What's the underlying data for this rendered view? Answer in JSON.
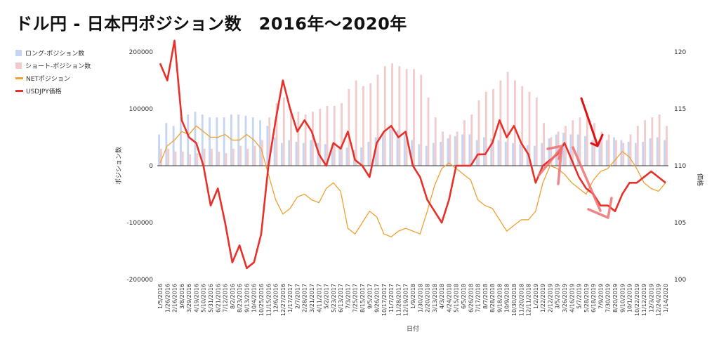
{
  "title": "ドル円 - 日本円ポジション数　2016年～2020年",
  "colors": {
    "long": "#c6d6f2",
    "short": "#f2cccc",
    "net": "#f0a030",
    "usdjpy": "#e8302a",
    "annotation_dark": "#e01010",
    "annotation_light": "#f07070",
    "zero_line": "#333333"
  },
  "chart_data": {
    "type": "combo",
    "title": "ドル円 - 日本円ポジション数　2016年～2020年",
    "xlabel": "日付",
    "ylabel": "ポジション数",
    "y2label": "価格",
    "ylim": [
      -200000,
      200000
    ],
    "y2lim": [
      100,
      120
    ],
    "yticks": [
      "200000",
      "100000",
      "0",
      "-100000",
      "-200000"
    ],
    "y2ticks": [
      "120",
      "115",
      "110",
      "105",
      "100"
    ],
    "legend": [
      {
        "name": "ロング-ポジション数",
        "kind": "bar"
      },
      {
        "name": "ショート-ポジション数",
        "kind": "bar"
      },
      {
        "name": "NETポジション",
        "kind": "line"
      },
      {
        "name": "USDJPY価格",
        "kind": "line"
      }
    ],
    "xticks": [
      "1/5/2016",
      "1/26/2016",
      "2/16/2016",
      "3/8/2016",
      "3/29/2016",
      "4/19/2016",
      "5/10/2016",
      "5/31/2016",
      "6/21/2016",
      "7/12/2016",
      "8/2/2016",
      "8/23/2016",
      "9/13/2016",
      "10/4/2016",
      "10/25/2016",
      "11/15/2016",
      "12/6/2016",
      "12/27/2016",
      "1/17/2017",
      "2/7/2017",
      "2/28/2017",
      "3/21/2017",
      "4/11/2017",
      "5/2/2017",
      "5/23/2017",
      "6/13/2017",
      "7/3/2017",
      "7/25/2017",
      "8/15/2017",
      "9/5/2017",
      "9/26/2017",
      "10/17/2017",
      "11/7/2017",
      "11/28/2017",
      "12/19/2017",
      "1/9/2018",
      "1/30/2018",
      "2/20/2018",
      "3/13/2018",
      "4/3/2018",
      "4/24/2018",
      "5/15/2018",
      "6/5/2018",
      "6/26/2018",
      "7/17/2018",
      "8/7/2018",
      "8/28/2018",
      "9/18/2018",
      "10/9/2018",
      "10/30/2018",
      "11/20/2018",
      "12/11/2018",
      "1/2/2019",
      "1/22/2019",
      "2/12/2019",
      "3/5/2019",
      "3/26/2019",
      "4/16/2019",
      "5/7/2019",
      "5/28/2019",
      "6/18/2019",
      "7/9/2019",
      "7/30/2019",
      "8/20/2019",
      "9/10/2019",
      "10/1/2019",
      "10/22/2019",
      "11/12/2019",
      "12/3/2019",
      "12/24/2019",
      "1/14/2020"
    ],
    "series": [
      {
        "name": "ロング-ポジション数",
        "values": [
          55000,
          75000,
          70000,
          85000,
          90000,
          95000,
          90000,
          85000,
          85000,
          85000,
          90000,
          90000,
          88000,
          85000,
          80000,
          70000,
          50000,
          40000,
          45000,
          42000,
          40000,
          45000,
          40000,
          38000,
          38000,
          35000,
          32000,
          28000,
          32000,
          42000,
          50000,
          58000,
          65000,
          62000,
          55000,
          45000,
          38000,
          35000,
          40000,
          42000,
          48000,
          52000,
          55000,
          55000,
          45000,
          50000,
          48000,
          45000,
          42000,
          40000,
          38000,
          36000,
          35000,
          40000,
          48000,
          55000,
          58000,
          55000,
          55000,
          52000,
          45000,
          42000,
          45000,
          50000,
          45000,
          42000,
          40000,
          42000,
          48000,
          50000,
          45000
        ]
      },
      {
        "name": "ショート-ポジション数",
        "values": [
          30000,
          30000,
          25000,
          25000,
          20000,
          22000,
          30000,
          30000,
          25000,
          22000,
          30000,
          35000,
          30000,
          35000,
          45000,
          85000,
          110000,
          120000,
          100000,
          95000,
          90000,
          95000,
          100000,
          105000,
          105000,
          110000,
          135000,
          150000,
          140000,
          145000,
          160000,
          175000,
          180000,
          175000,
          170000,
          170000,
          160000,
          120000,
          85000,
          60000,
          55000,
          60000,
          80000,
          90000,
          115000,
          130000,
          135000,
          150000,
          165000,
          150000,
          140000,
          130000,
          120000,
          75000,
          50000,
          60000,
          70000,
          80000,
          85000,
          90000,
          75000,
          60000,
          55000,
          45000,
          40000,
          55000,
          70000,
          80000,
          85000,
          90000,
          70000
        ]
      },
      {
        "name": "NETポジション",
        "values": [
          5000,
          35000,
          45000,
          60000,
          55000,
          70000,
          60000,
          50000,
          50000,
          55000,
          45000,
          45000,
          55000,
          45000,
          30000,
          -15000,
          -60000,
          -85000,
          -75000,
          -55000,
          -50000,
          -60000,
          -65000,
          -40000,
          -30000,
          -45000,
          -110000,
          -120000,
          -100000,
          -80000,
          -90000,
          -120000,
          -125000,
          -115000,
          -110000,
          -115000,
          -120000,
          -80000,
          -35000,
          -5000,
          5000,
          -5000,
          -15000,
          -25000,
          -60000,
          -70000,
          -75000,
          -95000,
          -115000,
          -105000,
          -95000,
          -95000,
          -80000,
          -30000,
          0,
          -5000,
          -15000,
          -30000,
          -40000,
          -50000,
          -25000,
          -10000,
          -5000,
          10000,
          25000,
          15000,
          -5000,
          -30000,
          -40000,
          -45000,
          -30000
        ]
      },
      {
        "name": "USDJPY価格",
        "values": [
          119,
          117.5,
          121,
          114,
          112.5,
          112,
          110,
          106.5,
          108,
          105,
          101.5,
          103,
          101,
          101.5,
          104,
          110,
          114,
          117.5,
          115,
          113,
          114,
          113,
          111,
          110,
          112,
          111.5,
          113,
          110.5,
          110,
          109,
          112,
          113,
          113.5,
          112.5,
          113,
          110,
          109,
          107,
          106,
          105,
          107,
          110,
          110,
          110,
          111,
          111,
          112,
          114,
          112.5,
          113.5,
          112,
          111,
          108.5,
          110,
          110.5,
          111,
          112,
          110.5,
          109,
          108,
          107.5,
          106.5,
          106.5,
          106,
          107.5,
          108.5,
          108.5,
          109,
          109.5,
          109,
          108.5
        ]
      }
    ],
    "annotations": [
      {
        "kind": "arrow",
        "color": "annotation_dark",
        "label": "down-arrow"
      },
      {
        "kind": "arrow",
        "color": "annotation_light",
        "label": "zigzag-arrow"
      }
    ]
  }
}
